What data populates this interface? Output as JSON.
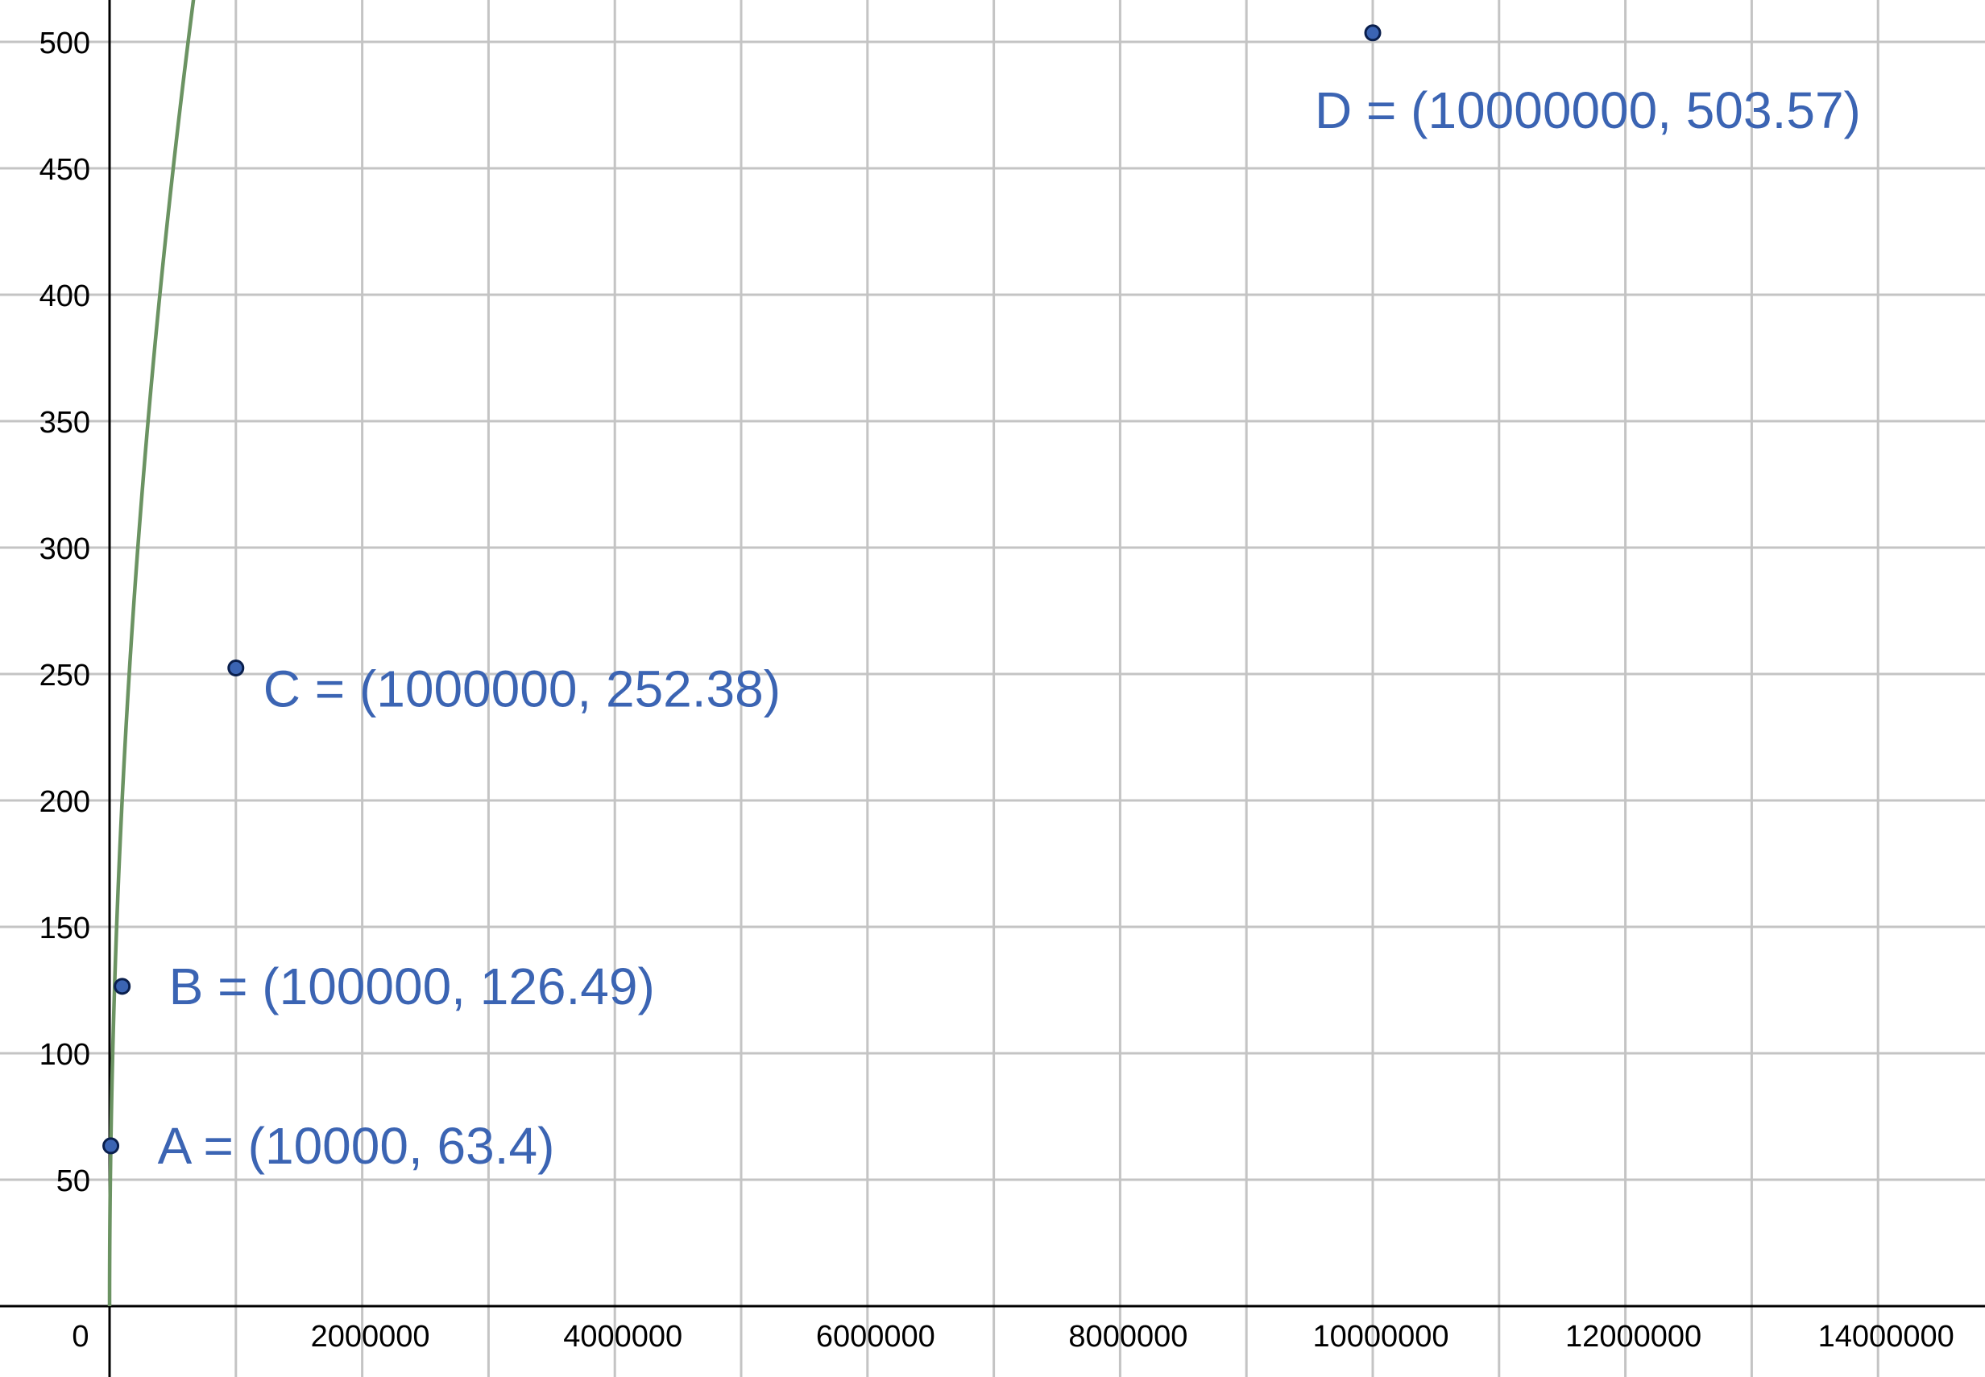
{
  "chart_data": {
    "type": "line",
    "title": "",
    "xlabel": "",
    "ylabel": "",
    "xlim": [
      0,
      15000000
    ],
    "ylim": [
      0,
      500
    ],
    "grid": true,
    "x_gridlines": [
      1000000,
      2000000,
      3000000,
      4000000,
      5000000,
      6000000,
      7000000,
      8000000,
      9000000,
      10000000,
      11000000,
      12000000,
      13000000,
      14000000
    ],
    "y_gridlines": [
      50,
      100,
      150,
      200,
      250,
      300,
      350,
      400,
      450,
      500
    ],
    "x_ticks": [
      {
        "value": 2000000,
        "label": "2000000"
      },
      {
        "value": 4000000,
        "label": "4000000"
      },
      {
        "value": 6000000,
        "label": "6000000"
      },
      {
        "value": 8000000,
        "label": "8000000"
      },
      {
        "value": 10000000,
        "label": "10000000"
      },
      {
        "value": 12000000,
        "label": "12000000"
      },
      {
        "value": 14000000,
        "label": "14000000"
      }
    ],
    "y_ticks": [
      {
        "value": 50,
        "label": "50"
      },
      {
        "value": 100,
        "label": "100"
      },
      {
        "value": 150,
        "label": "150"
      },
      {
        "value": 200,
        "label": "200"
      },
      {
        "value": 250,
        "label": "250"
      },
      {
        "value": 300,
        "label": "300"
      },
      {
        "value": 350,
        "label": "350"
      },
      {
        "value": 400,
        "label": "400"
      },
      {
        "value": 450,
        "label": "450"
      },
      {
        "value": 500,
        "label": "500"
      }
    ],
    "origin_label": "0",
    "series": [
      {
        "coefficient": 0.634,
        "exponent": 0.5,
        "x_end": 11000000,
        "color": "#6b9362"
      }
    ],
    "points": [
      {
        "name": "A",
        "x": 10000,
        "y": 63.4,
        "label": "A = (10000, 63.4)",
        "label_anchor": "right"
      },
      {
        "name": "B",
        "x": 100000,
        "y": 126.49,
        "label": "B = (100000, 126.49)",
        "label_anchor": "right"
      },
      {
        "name": "C",
        "x": 1000000,
        "y": 252.38,
        "label": "C = (1000000, 252.38)",
        "label_anchor": "below-right"
      },
      {
        "name": "D",
        "x": 10000000,
        "y": 503.57,
        "label": "D = (10000000, 503.57)",
        "label_anchor": "below"
      }
    ],
    "point_color": "#3b64b3",
    "label_color": "#3b64b3"
  }
}
